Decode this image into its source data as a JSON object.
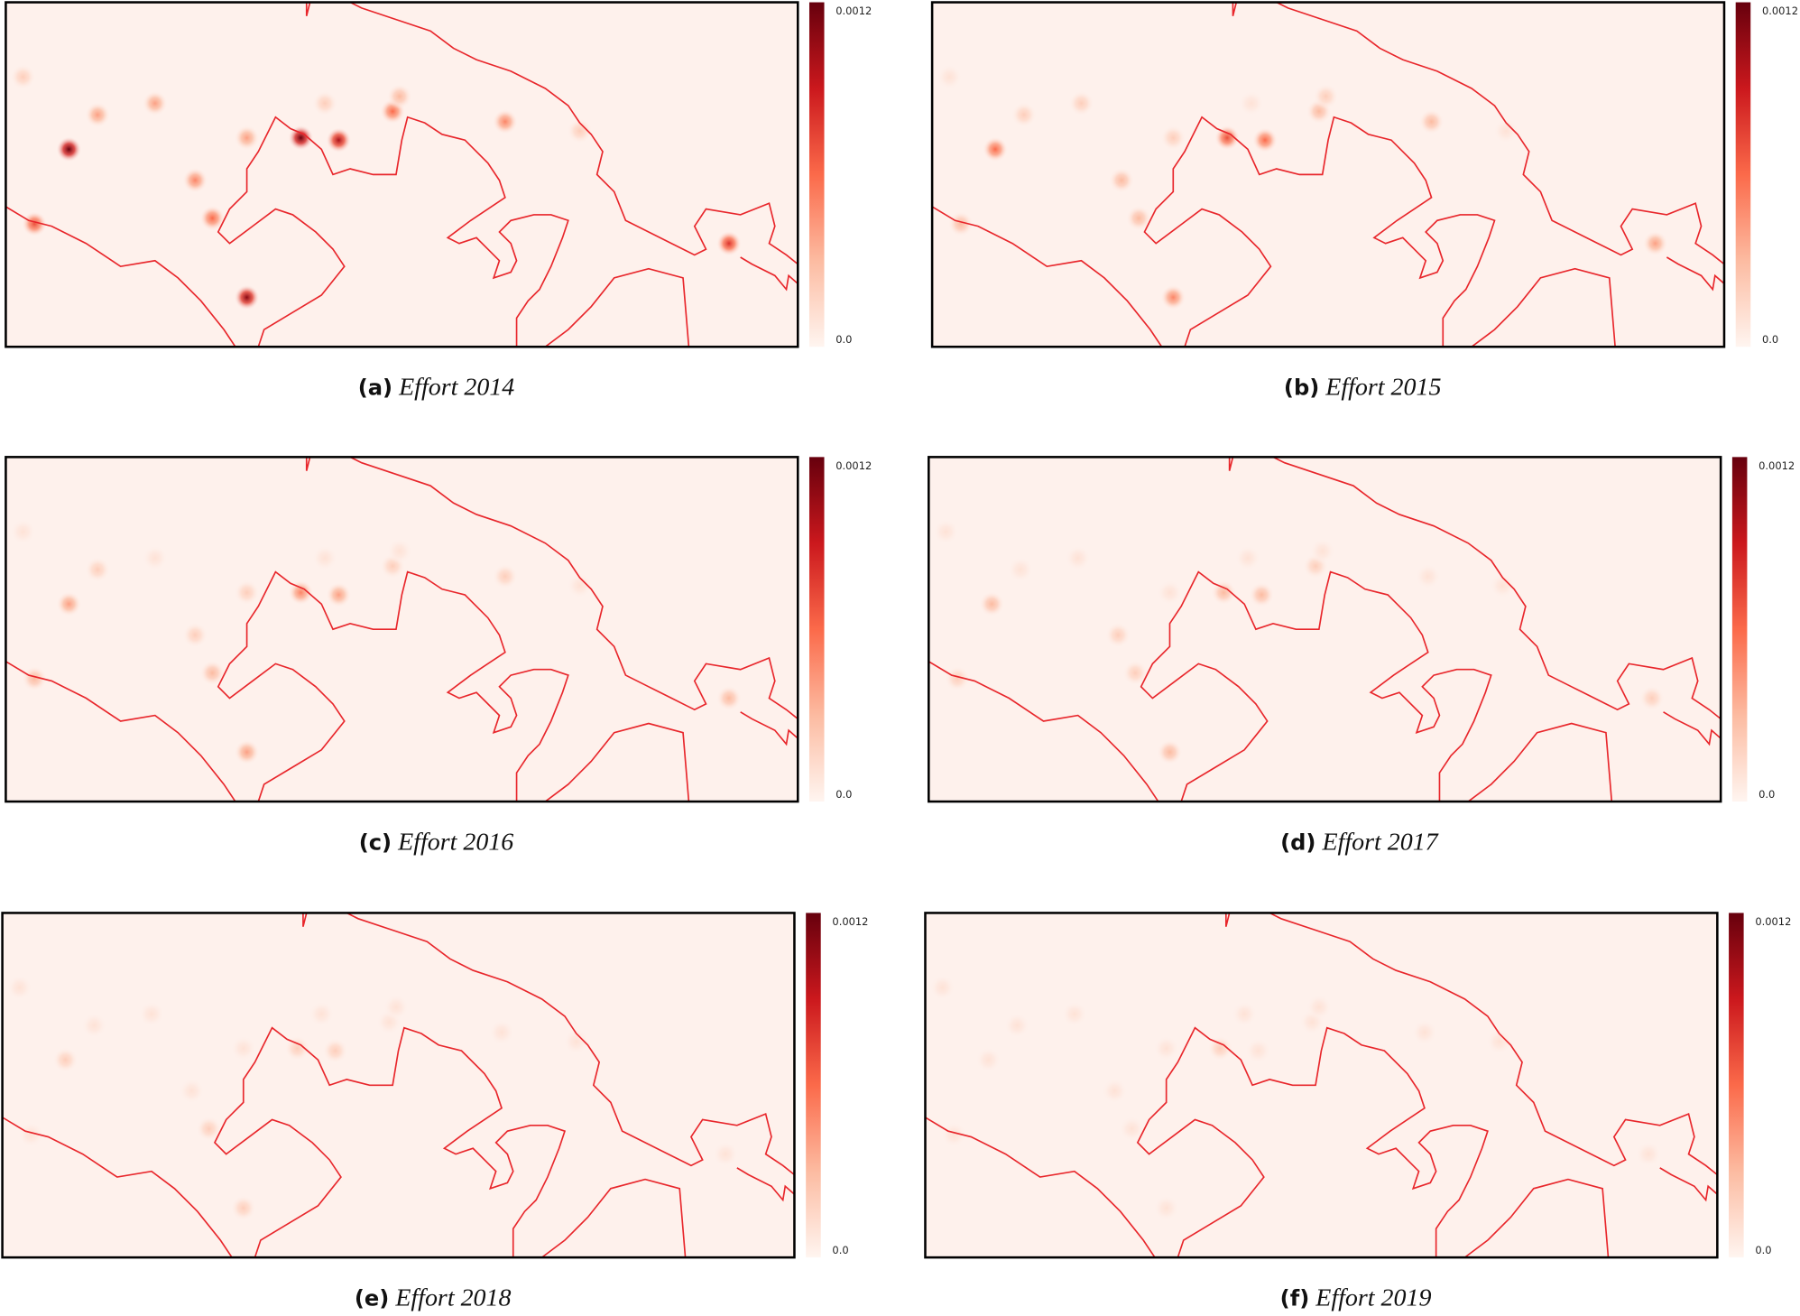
{
  "panels": [
    {
      "label": "(a)",
      "title": "Effort 2014",
      "colorbar": {
        "lim": [
          0,
          0.0012
        ],
        "ticks": [
          {
            "value": 0,
            "label": "0.0"
          },
          0.0012
        ]
      },
      "hotspot_values": [
        0.0012,
        0.0004,
        0.0004,
        0.0005,
        0.0006,
        0.0011,
        0.0004,
        0.0012,
        0.001,
        0.0006,
        0.0003,
        0.0005,
        0.0007,
        0.0008,
        0.0002,
        0.0002,
        0.0002
      ]
    },
    {
      "label": "(b)",
      "title": "Effort 2015",
      "colorbar": {
        "lim": [
          0,
          0.0012
        ],
        "ticks": [
          {
            "value": 0,
            "label": "0.0"
          },
          0.0012
        ]
      },
      "hotspot_values": [
        0.0006,
        0.0002,
        0.0002,
        0.0003,
        0.0003,
        0.0005,
        0.0002,
        0.0007,
        0.0006,
        0.0003,
        0.0002,
        0.0003,
        0.0003,
        0.0004,
        0.0001,
        0.0001,
        0.0001
      ]
    },
    {
      "label": "(c)",
      "title": "Effort 2016",
      "colorbar": {
        "lim": [
          0,
          0.0012
        ],
        "ticks": [
          {
            "value": 0,
            "label": "0.0"
          },
          0.0012
        ]
      },
      "hotspot_values": [
        0.0004,
        0.0002,
        0.0001,
        0.0002,
        0.0003,
        0.0004,
        0.0002,
        0.0005,
        0.0004,
        0.0002,
        0.0001,
        0.0002,
        0.0003,
        0.0003,
        0.0001,
        0.0001,
        0.0001
      ]
    },
    {
      "label": "(d)",
      "title": "Effort 2017",
      "colorbar": {
        "lim": [
          0,
          0.0012
        ],
        "ticks": [
          {
            "value": 0,
            "label": "0.0"
          },
          0.0012
        ]
      },
      "hotspot_values": [
        0.0003,
        0.0001,
        0.0001,
        0.0002,
        0.0002,
        0.0003,
        0.0001,
        0.0003,
        0.0003,
        0.0002,
        0.0001,
        0.0001,
        0.0002,
        0.0002,
        0.0001,
        0.0001,
        0.0001
      ]
    },
    {
      "label": "(e)",
      "title": "Effort 2018",
      "colorbar": {
        "lim": [
          0,
          0.0012
        ],
        "ticks": [
          {
            "value": 0,
            "label": "0.0"
          },
          0.0012
        ]
      },
      "hotspot_values": [
        0.0002,
        0.0001,
        0.0001,
        0.0001,
        0.0002,
        0.0002,
        0.0001,
        0.0002,
        0.0002,
        0.0001,
        0.0001,
        0.0001,
        0.0001,
        0.0001,
        0.0001,
        0.0001,
        0.0001
      ]
    },
    {
      "label": "(f)",
      "title": "Effort 2019",
      "colorbar": {
        "lim": [
          0,
          0.0012
        ],
        "ticks": [
          {
            "value": 0,
            "label": "0.0"
          },
          0.0012
        ]
      },
      "hotspot_values": [
        0.0001,
        0.0001,
        0.0001,
        0.0001,
        0.0001,
        0.0001,
        0.0001,
        0.0002,
        0.0001,
        0.0001,
        0.0001,
        0.0001,
        0.0001,
        0.0001,
        0.0001,
        0.0001,
        0.0001
      ]
    }
  ]
}
